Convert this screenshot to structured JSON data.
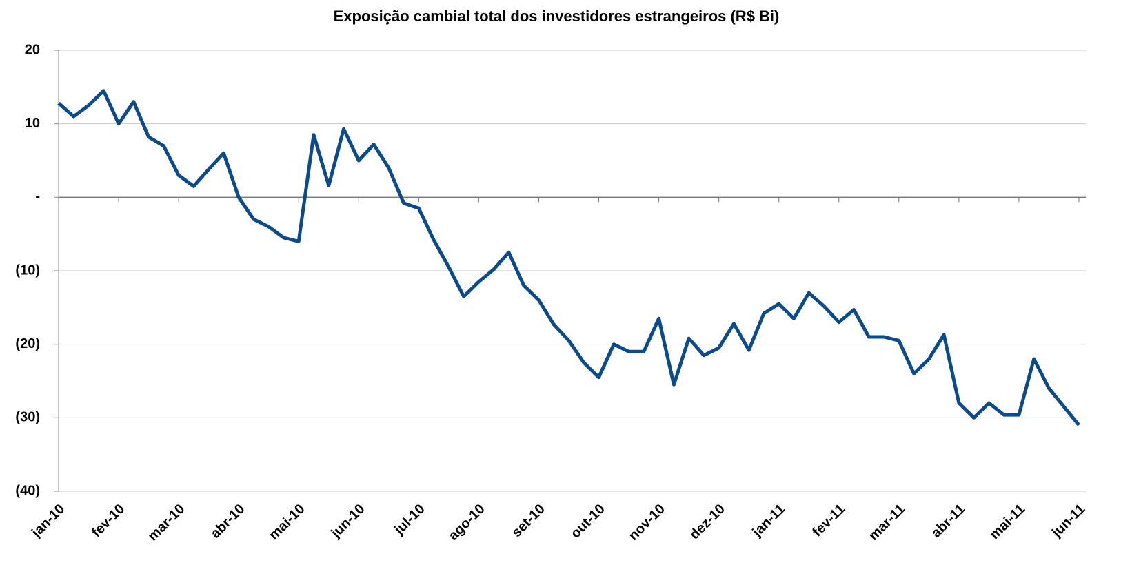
{
  "chart_data": {
    "type": "line",
    "title": "Exposição cambial total dos investidores estrangeiros (R$ Bi)",
    "categories": [
      "jan-10",
      null,
      null,
      null,
      "fev-10",
      null,
      null,
      null,
      "mar-10",
      null,
      null,
      null,
      "abr-10",
      null,
      null,
      null,
      "mai-10",
      null,
      null,
      null,
      "jun-10",
      null,
      null,
      null,
      "jul-10",
      null,
      null,
      null,
      "ago-10",
      null,
      null,
      null,
      "set-10",
      null,
      null,
      null,
      "out-10",
      null,
      null,
      null,
      "nov-10",
      null,
      null,
      null,
      "dez-10",
      null,
      null,
      null,
      "jan-11",
      null,
      null,
      null,
      "fev-11",
      null,
      null,
      null,
      "mar-11",
      null,
      null,
      null,
      "abr-11",
      null,
      null,
      null,
      "mai-11",
      null,
      null,
      null,
      "jun-11"
    ],
    "series": [
      {
        "name": "Exposição cambial",
        "color": "#0b4a8b",
        "values": [
          12.8,
          11.0,
          12.5,
          14.5,
          10,
          13,
          8.2,
          7,
          3.0,
          1.5,
          3.8,
          6,
          0,
          -3,
          -4,
          -5.5,
          -6,
          8.5,
          1.6,
          9.3,
          5,
          7.2,
          4,
          -0.8,
          -1.5,
          -5.8,
          -9.5,
          -13.5,
          -11.5,
          -9.8,
          -7.5,
          -12,
          -14,
          -17.3,
          -19.5,
          -22.5,
          -24.5,
          -20,
          -21,
          -21,
          -16.5,
          -25.5,
          -19.2,
          -21.5,
          -20.5,
          -17.2,
          -20.8,
          -15.8,
          -14.5,
          -16.5,
          -13,
          -14.8,
          -17,
          -15.3,
          -19,
          -19,
          -19.5,
          -24,
          -22,
          -18.7,
          -28,
          -30,
          -28,
          -29.6,
          -29.6,
          -22,
          -26,
          -28.5,
          -31
        ]
      }
    ],
    "ylim": [
      -40,
      20
    ],
    "yticks": [
      20,
      10,
      {
        "value": 0,
        "label": "-"
      },
      {
        "value": -10,
        "label": "(10)"
      },
      {
        "value": -20,
        "label": "(20)"
      },
      {
        "value": -30,
        "label": "(30)"
      },
      {
        "value": -40,
        "label": "(40)"
      }
    ],
    "grid": true
  }
}
